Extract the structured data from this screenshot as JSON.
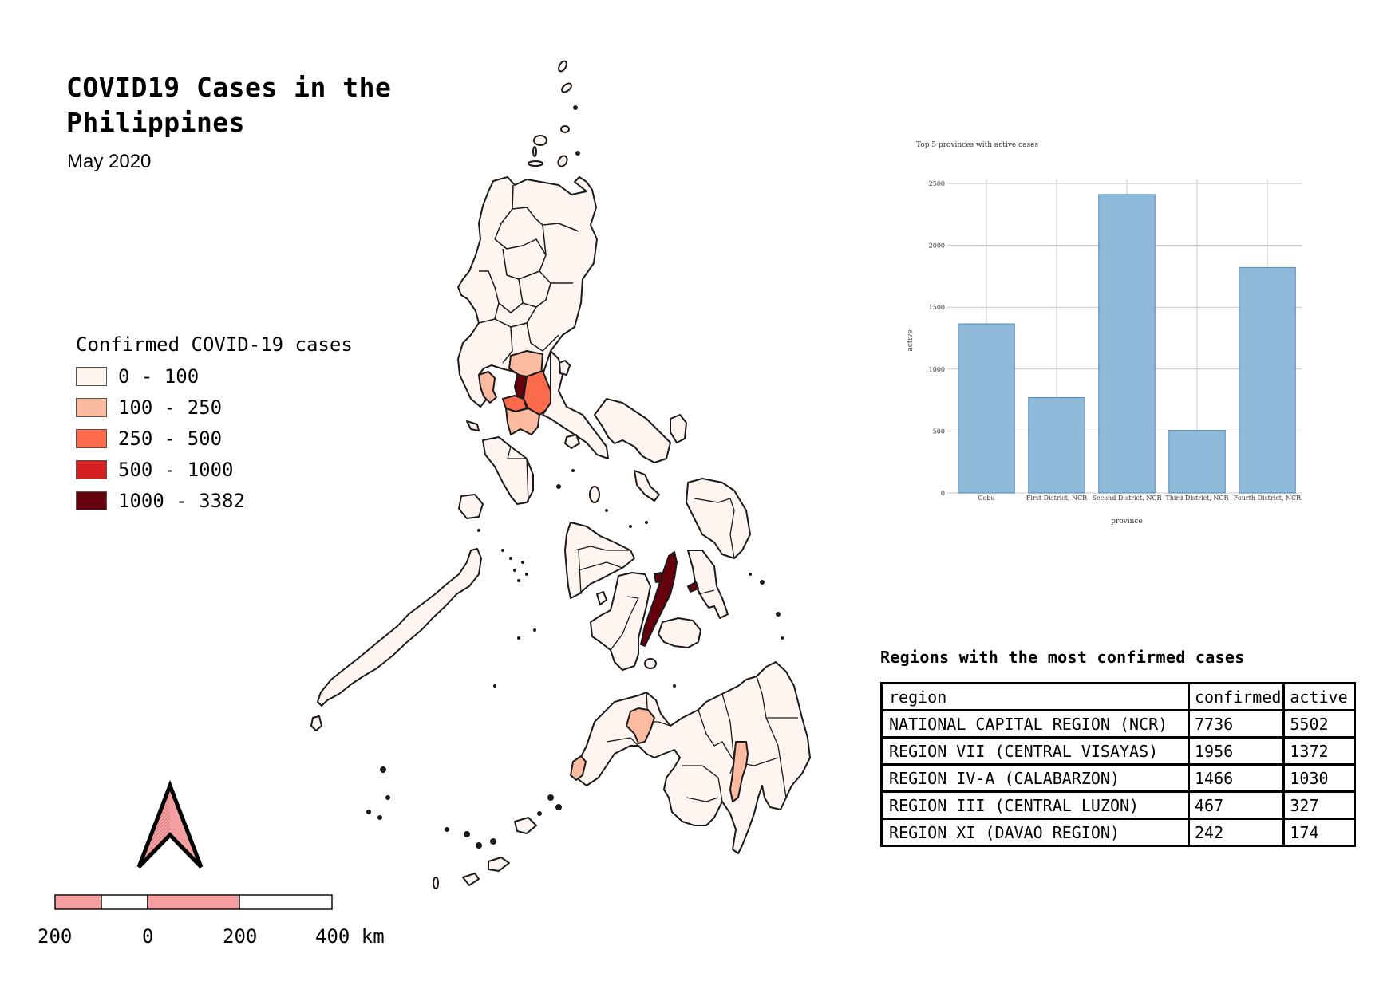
{
  "header": {
    "title": "COVID19 Cases in the Philippines",
    "subtitle": "May 2020"
  },
  "legend": {
    "title": "Confirmed COVID-19 cases",
    "items": [
      {
        "label": "0 - 100",
        "color": "#fff5f0"
      },
      {
        "label": "100 - 250",
        "color": "#fcbba1"
      },
      {
        "label": "250 - 500",
        "color": "#fb6a4a"
      },
      {
        "label": "500 - 1000",
        "color": "#d42020"
      },
      {
        "label": "1000 - 3382",
        "color": "#67000d"
      }
    ]
  },
  "map": {
    "outline_color": "#1a1a1a",
    "base_fill": "#fff5f0"
  },
  "north_arrow": {
    "icon": "north-arrow-icon",
    "fill": "#f4a0a0"
  },
  "scale_bar": {
    "labels": [
      "200",
      "0",
      "200",
      "400 km"
    ],
    "fill": "#f4a0a0"
  },
  "chart_data": {
    "type": "bar",
    "title": "Top 5 provinces with active cases",
    "categories": [
      "Cebu",
      "First District, NCR",
      "Second District, NCR",
      "Third District, NCR",
      "Fourth District, NCR"
    ],
    "values": [
      1365,
      770,
      2410,
      505,
      1820
    ],
    "xlabel": "province",
    "ylabel": "active",
    "ylim": [
      0,
      2500
    ],
    "yticks": [
      0,
      500,
      1000,
      1500,
      2000,
      2500
    ],
    "grid": true,
    "bar_color": "#8fb9d9",
    "bar_edge": "#5a93bf"
  },
  "table": {
    "title": "Regions with the most confirmed cases",
    "columns": [
      "region",
      "confirmed",
      "active"
    ],
    "rows": [
      [
        "NATIONAL CAPITAL REGION (NCR)",
        "7736",
        "5502"
      ],
      [
        "REGION VII (CENTRAL VISAYAS)",
        "1956",
        "1372"
      ],
      [
        "REGION IV-A (CALABARZON)",
        "1466",
        "1030"
      ],
      [
        "REGION III (CENTRAL LUZON)",
        "467",
        "327"
      ],
      [
        "REGION XI (DAVAO REGION)",
        "242",
        "174"
      ]
    ]
  }
}
